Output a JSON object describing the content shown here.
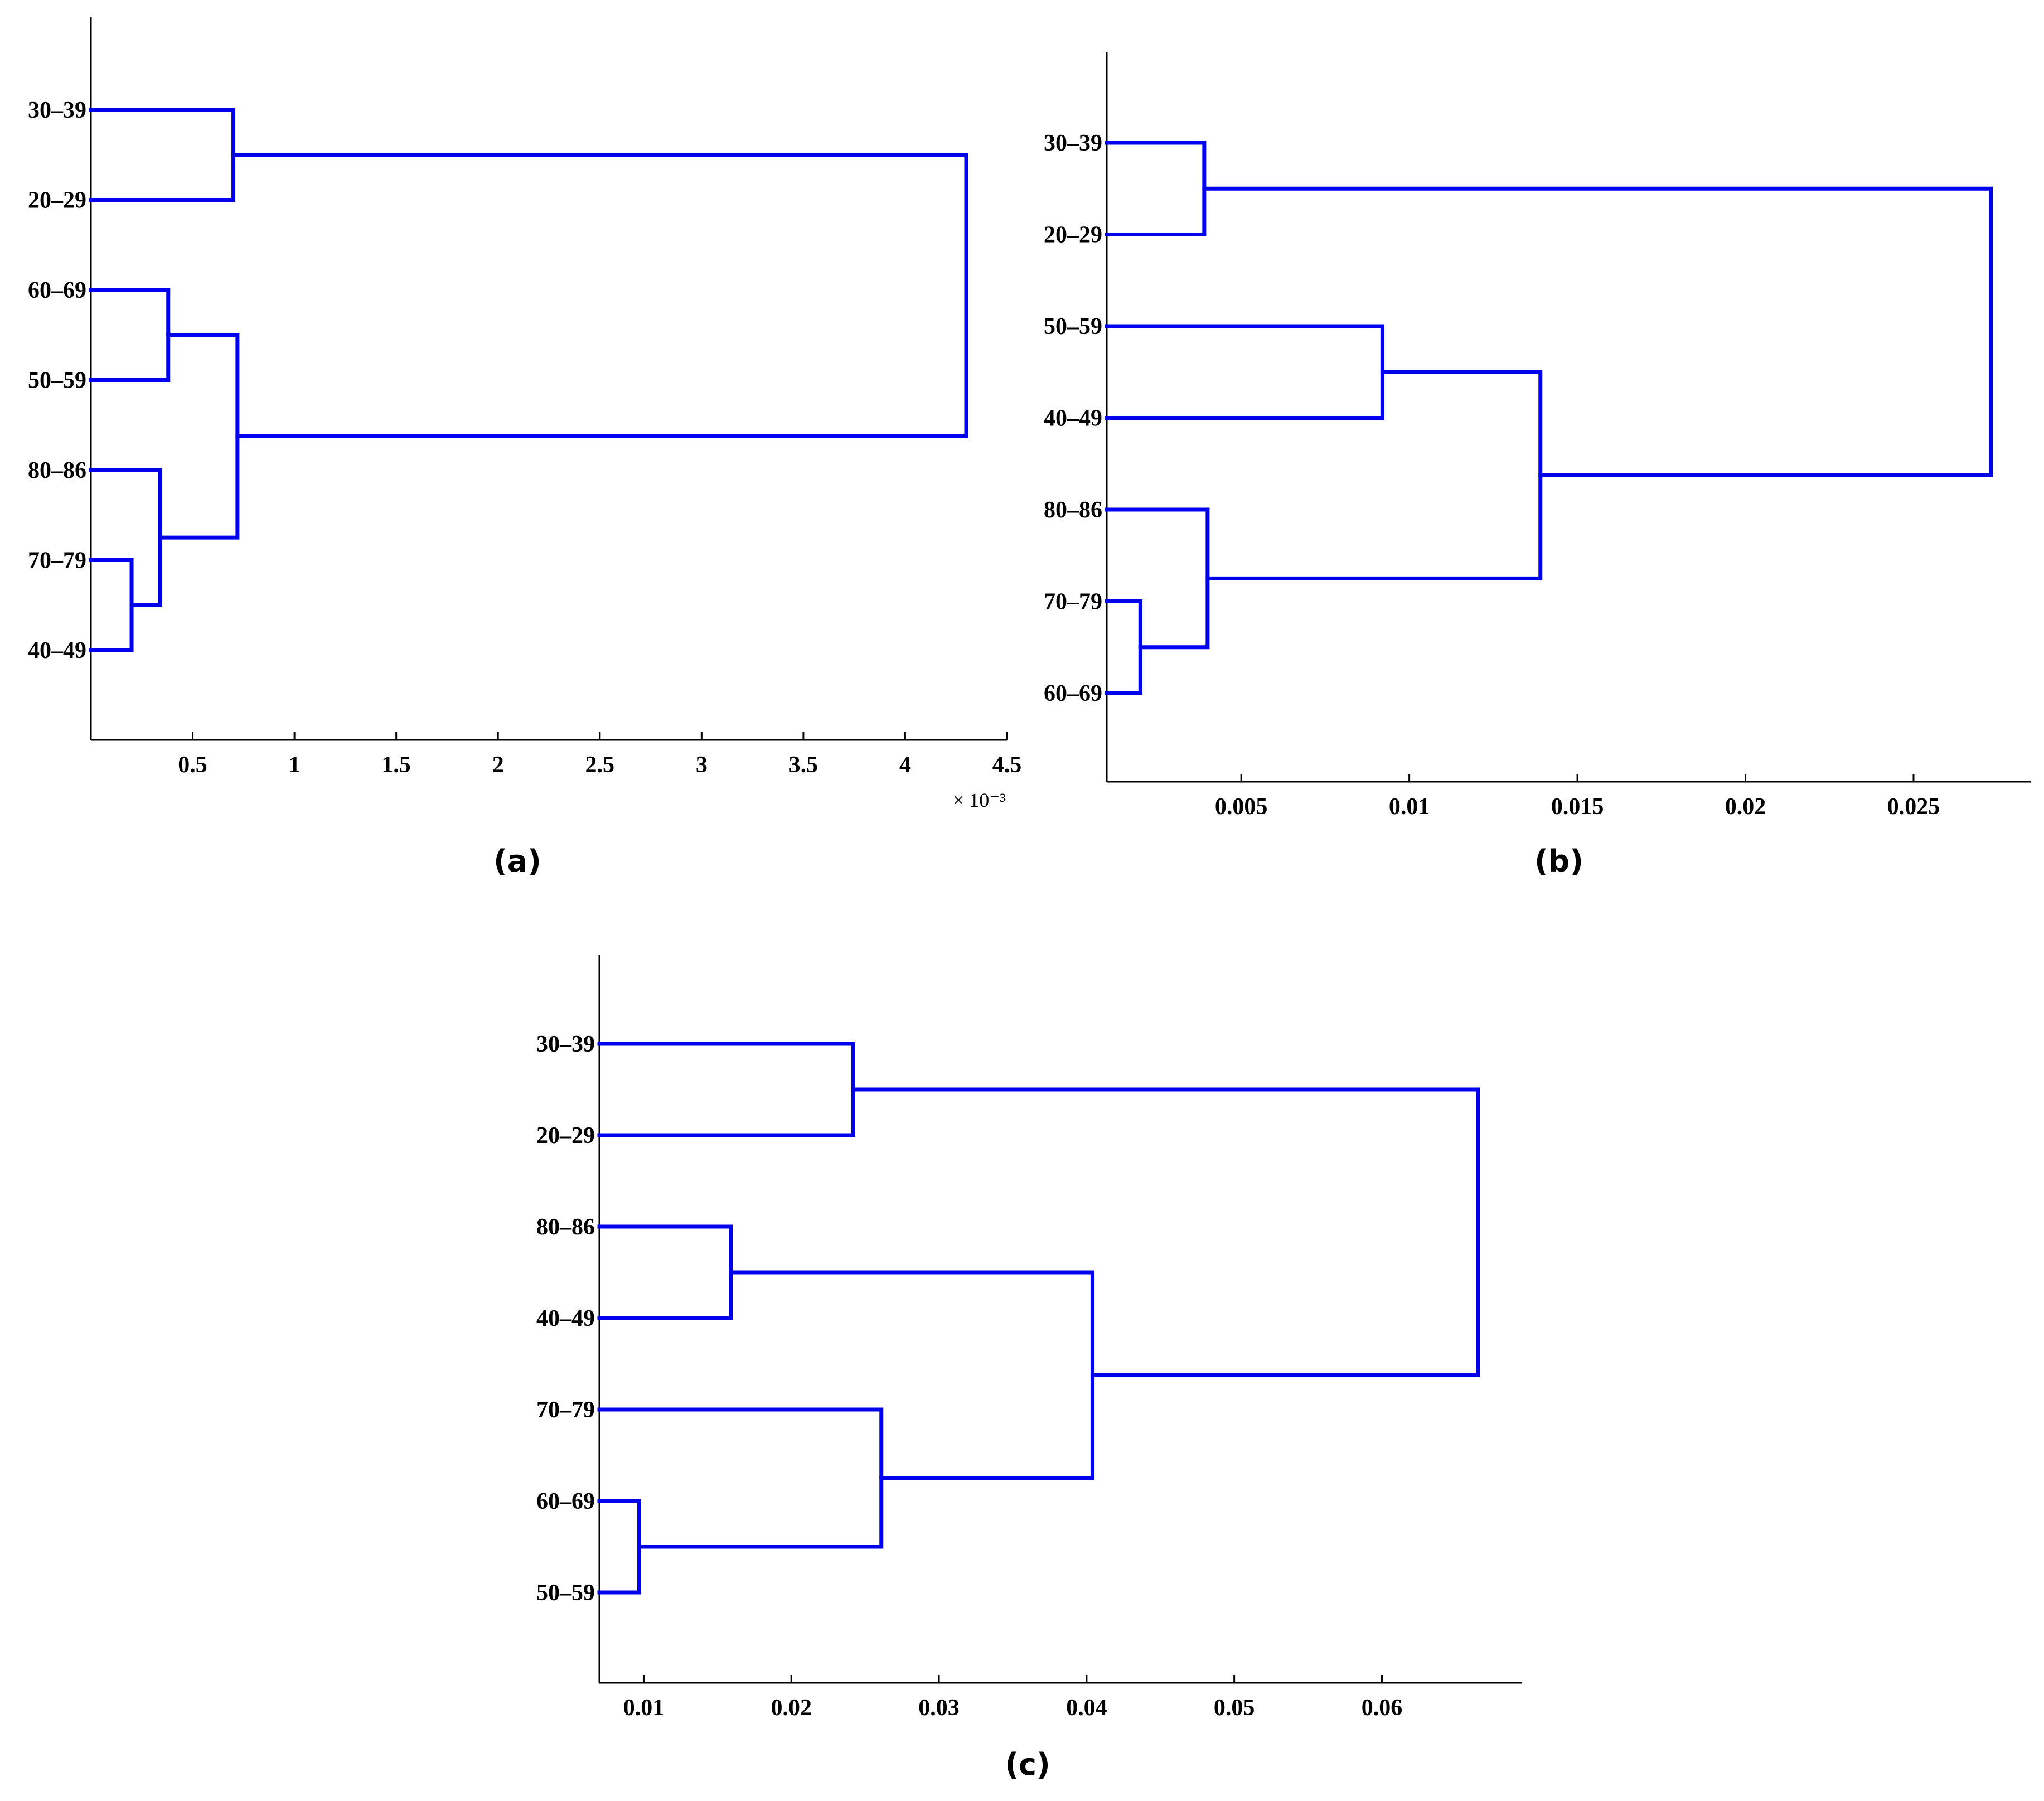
{
  "chart_data": [
    {
      "id": "a",
      "type": "dendrogram",
      "caption": "(a)",
      "leaves": [
        "30–39",
        "20–29",
        "60–69",
        "50–59",
        "80–86",
        "70–79",
        "40–49"
      ],
      "merges": [
        {
          "left": "70–79",
          "right": "40–49",
          "height": 0.0002
        },
        {
          "left": "L0",
          "right": "80–86",
          "height": 0.00034
        },
        {
          "left": "60–69",
          "right": "50–59",
          "height": 0.00038
        },
        {
          "left": "30–39",
          "right": "20–29",
          "height": 0.0007
        },
        {
          "left": "L2",
          "right": "L1",
          "height": 0.00072
        },
        {
          "left": "L3",
          "right": "L4",
          "height": 0.0043
        }
      ],
      "xlim": [
        0,
        0.0045
      ],
      "xticks": [
        0.0005,
        0.001,
        0.0015,
        0.002,
        0.0025,
        0.003,
        0.0035,
        0.004,
        0.0045
      ],
      "xtick_labels": [
        "0.5",
        "1",
        "1.5",
        "2",
        "2.5",
        "3",
        "3.5",
        "4",
        "4.5"
      ],
      "exponent_label": "× 10⁻³"
    },
    {
      "id": "b",
      "type": "dendrogram",
      "caption": "(b)",
      "leaves": [
        "30–39",
        "20–29",
        "50–59",
        "40–49",
        "80–86",
        "70–79",
        "60–69"
      ],
      "merges": [
        {
          "left": "70–79",
          "right": "60–69",
          "height": 0.002
        },
        {
          "left": "30–39",
          "right": "20–29",
          "height": 0.0039
        },
        {
          "left": "80–86",
          "right": "L0",
          "height": 0.004
        },
        {
          "left": "50–59",
          "right": "40–49",
          "height": 0.0092
        },
        {
          "left": "L3",
          "right": "L2",
          "height": 0.0139
        },
        {
          "left": "L1",
          "right": "L4",
          "height": 0.0273
        }
      ],
      "xlim": [
        0.001,
        0.0285
      ],
      "xticks": [
        0.005,
        0.01,
        0.015,
        0.02,
        0.025
      ],
      "xtick_labels": [
        "0.005",
        "0.01",
        "0.015",
        "0.02",
        "0.025"
      ]
    },
    {
      "id": "c",
      "type": "dendrogram",
      "caption": "(c)",
      "leaves": [
        "30–39",
        "20–29",
        "80–86",
        "40–49",
        "70–79",
        "60–69",
        "50–59"
      ],
      "merges": [
        {
          "left": "60–69",
          "right": "50–59",
          "height": 0.0097
        },
        {
          "left": "80–86",
          "right": "40–49",
          "height": 0.0159
        },
        {
          "left": "30–39",
          "right": "20–29",
          "height": 0.0242
        },
        {
          "left": "70–79",
          "right": "L0",
          "height": 0.0261
        },
        {
          "left": "L1",
          "right": "L3",
          "height": 0.0404
        },
        {
          "left": "L2",
          "right": "L4",
          "height": 0.0665
        }
      ],
      "xlim": [
        0.007,
        0.0695
      ],
      "xticks": [
        0.01,
        0.02,
        0.03,
        0.04,
        0.05,
        0.06
      ],
      "xtick_labels": [
        "0.01",
        "0.02",
        "0.03",
        "0.04",
        "0.05",
        "0.06"
      ]
    }
  ]
}
